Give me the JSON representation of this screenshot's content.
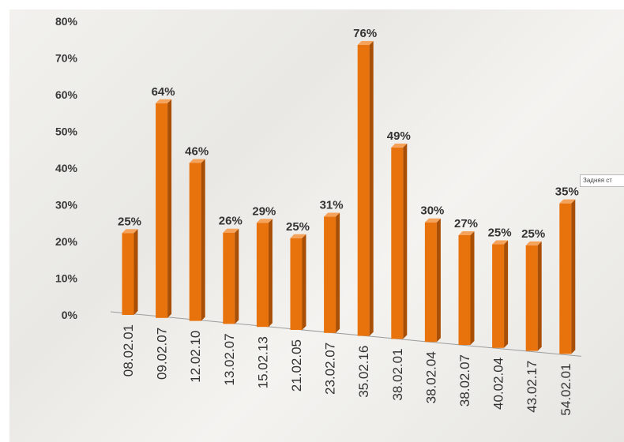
{
  "chart_data": {
    "type": "bar",
    "categories": [
      "08.02.01",
      "09.02.07",
      "12.02.10",
      "13.02.07",
      "15.02.13",
      "21.02.05",
      "23.02.07",
      "35.02.16",
      "38.02.01",
      "38.02.04",
      "38.02.07",
      "40.02.04",
      "43.02.17",
      "54.02.01"
    ],
    "values": [
      25,
      64,
      46,
      26,
      29,
      25,
      31,
      76,
      49,
      30,
      27,
      25,
      25,
      35
    ],
    "value_labels": [
      "25%",
      "64%",
      "46%",
      "26%",
      "29%",
      "25%",
      "31%",
      "76%",
      "49%",
      "30%",
      "27%",
      "25%",
      "25%",
      "35%"
    ],
    "y_ticks": [
      "0%",
      "10%",
      "20%",
      "30%",
      "40%",
      "50%",
      "60%",
      "70%",
      "80%"
    ],
    "ylim": [
      0,
      80
    ],
    "title": "",
    "xlabel": "",
    "ylabel": "",
    "grid": false,
    "legend": "none",
    "bar_color": "#e8720c",
    "bar_side_color": "#a84e05",
    "bar_top_color": "#f5a25a"
  },
  "tooltip": {
    "text": "Задняя ст"
  }
}
